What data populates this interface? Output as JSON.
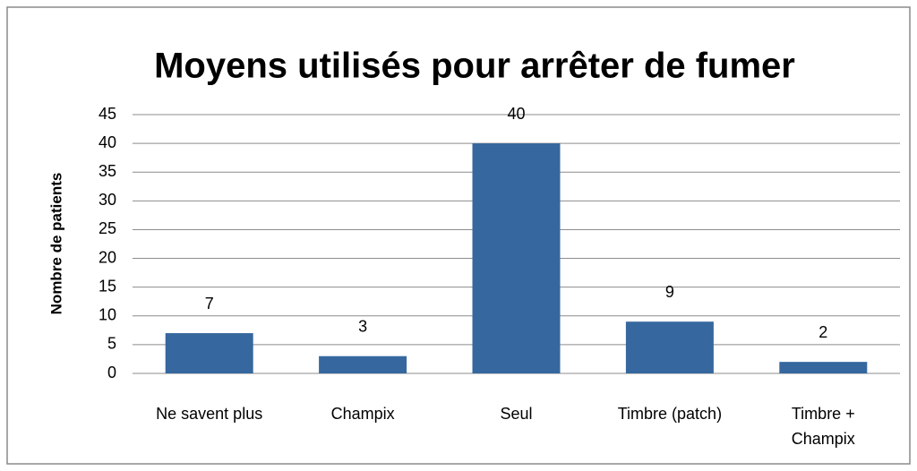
{
  "chart_data": {
    "type": "bar",
    "title": "Moyens utilisés pour arrêter de fumer",
    "y_label": "Nombre de patients",
    "categories": [
      "Ne savent plus",
      "Champix",
      "Seul",
      "Timbre (patch)",
      "Timbre +\nChampix"
    ],
    "values": [
      7,
      3,
      40,
      9,
      2
    ],
    "color": "#36689f",
    "ylim": [
      0,
      45
    ],
    "yticks": [
      0,
      5,
      10,
      15,
      20,
      25,
      30,
      35,
      40,
      45
    ],
    "grid": true
  }
}
